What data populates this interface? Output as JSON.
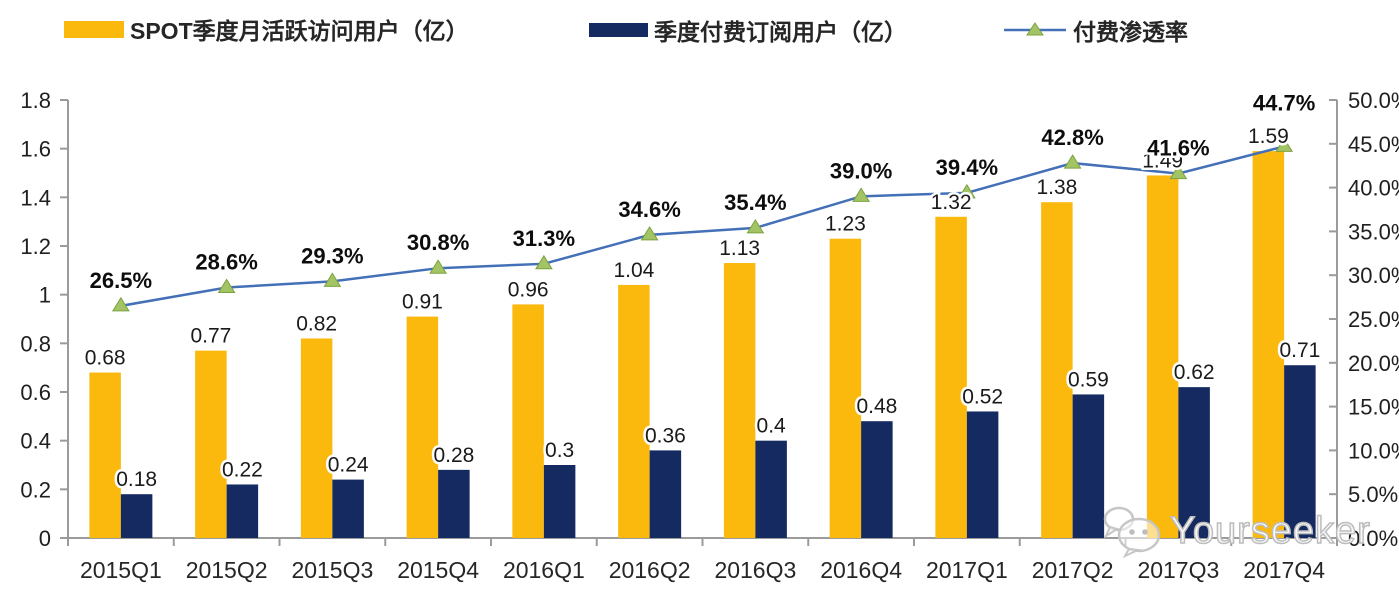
{
  "legend": {
    "mau_label": "SPOT季度月活跃访问用户（亿）",
    "subscribers_label": "季度付费订阅用户（亿）",
    "penetration_label": "付费渗透率"
  },
  "watermark": {
    "icon": "wechat-icon",
    "text": "Yourseeker"
  },
  "colors": {
    "mau_bar": "#FBB90D",
    "subscriber_bar": "#152A60",
    "line": "#4470B8",
    "marker": "#A2C464",
    "marker_edge": "#7EA23F",
    "axis": "#9B9B9B"
  },
  "chart_data": {
    "type": "bar",
    "subtype": "grouped-bars-with-line",
    "title": "",
    "xlabel": "",
    "ylabel": "",
    "grid": false,
    "legend_position": "top",
    "categories": [
      "2015Q1",
      "2015Q2",
      "2015Q3",
      "2015Q4",
      "2016Q1",
      "2016Q2",
      "2016Q3",
      "2016Q4",
      "2017Q1",
      "2017Q2",
      "2017Q3",
      "2017Q4"
    ],
    "series": [
      {
        "name": "SPOT季度月活跃访问用户（亿）",
        "type": "bar",
        "axis": "left",
        "values": [
          0.68,
          0.77,
          0.82,
          0.91,
          0.96,
          1.04,
          1.13,
          1.23,
          1.32,
          1.38,
          1.49,
          1.59
        ],
        "labels": [
          "0.68",
          "0.77",
          "0.82",
          "0.91",
          "0.96",
          "1.04",
          "1.13",
          "1.23",
          "1.32",
          "1.38",
          "1.49",
          "1.59"
        ]
      },
      {
        "name": "季度付费订阅用户（亿）",
        "type": "bar",
        "axis": "left",
        "values": [
          0.18,
          0.22,
          0.24,
          0.28,
          0.3,
          0.36,
          0.4,
          0.48,
          0.52,
          0.59,
          0.62,
          0.71
        ],
        "labels": [
          "0.18",
          "0.22",
          "0.24",
          "0.28",
          "0.3",
          "0.36",
          "0.4",
          "0.48",
          "0.52",
          "0.59",
          "0.62",
          "0.71"
        ]
      },
      {
        "name": "付费渗透率",
        "type": "line",
        "axis": "right",
        "values": [
          26.5,
          28.6,
          29.3,
          30.8,
          31.3,
          34.6,
          35.4,
          39.0,
          39.4,
          42.8,
          41.6,
          44.7
        ],
        "labels": [
          "26.5%",
          "28.6%",
          "29.3%",
          "30.8%",
          "31.3%",
          "34.6%",
          "35.4%",
          "39.0%",
          "39.4%",
          "42.8%",
          "41.6%",
          "44.7%"
        ],
        "label_dy": [
          0,
          0,
          0,
          0,
          0,
          0,
          0,
          0,
          0,
          0,
          0,
          -18
        ]
      }
    ],
    "left_axis": {
      "min": 0,
      "max": 1.8,
      "ticks": [
        {
          "v": 0,
          "label": "0"
        },
        {
          "v": 0.2,
          "label": "0.2"
        },
        {
          "v": 0.4,
          "label": "0.4"
        },
        {
          "v": 0.6,
          "label": "0.6"
        },
        {
          "v": 0.8,
          "label": "0.8"
        },
        {
          "v": 1,
          "label": "1"
        },
        {
          "v": 1.2,
          "label": "1.2"
        },
        {
          "v": 1.4,
          "label": "1.4"
        },
        {
          "v": 1.6,
          "label": "1.6"
        },
        {
          "v": 1.8,
          "label": "1.8"
        }
      ]
    },
    "right_axis": {
      "min": 0,
      "max": 50,
      "ticks": [
        {
          "v": 0,
          "label": "0.0%"
        },
        {
          "v": 5,
          "label": "5.0%"
        },
        {
          "v": 10,
          "label": "10.0%"
        },
        {
          "v": 15,
          "label": "15.0%"
        },
        {
          "v": 20,
          "label": "20.0%"
        },
        {
          "v": 25,
          "label": "25.0%"
        },
        {
          "v": 30,
          "label": "30.0%"
        },
        {
          "v": 35,
          "label": "35.0%"
        },
        {
          "v": 40,
          "label": "40.0%"
        },
        {
          "v": 45,
          "label": "45.0%"
        },
        {
          "v": 50,
          "label": "50.0%"
        }
      ]
    }
  }
}
